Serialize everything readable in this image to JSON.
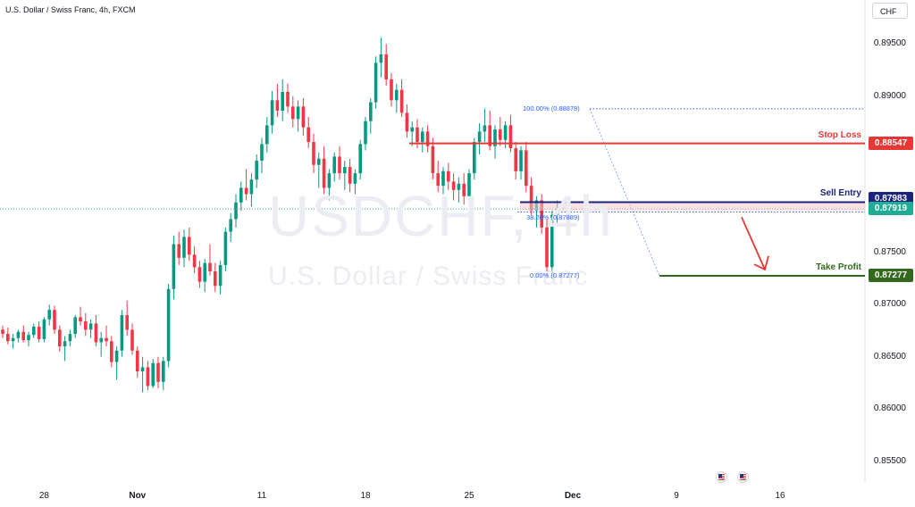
{
  "header": {
    "title": "U.S. Dollar / Swiss Franc, 4h, FXCM",
    "currency": "CHF"
  },
  "watermark": {
    "symbol": "USDCHF, 4h",
    "name": "U.S. Dollar / Swiss Franc"
  },
  "colors": {
    "up": "#089981",
    "down": "#f23645",
    "stop_loss": "#e53935",
    "sell_entry": "#1a237e",
    "take_profit": "#33691e",
    "fib": "#2962ff",
    "current_price": "#22ab94"
  },
  "chart_data": {
    "type": "candlestick",
    "xlabel": "",
    "ylabel": "",
    "ylim": [
      0.853,
      0.8975
    ],
    "yticks": [
      "0.85500",
      "0.86000",
      "0.86500",
      "0.87000",
      "0.87500",
      "0.88000",
      "0.88500",
      "0.89000",
      "0.89500"
    ],
    "ytick_values": [
      0.855,
      0.86,
      0.865,
      0.87,
      0.875,
      0.88,
      0.885,
      0.89,
      0.895
    ],
    "xticks": [
      {
        "label": "28",
        "bar": 8
      },
      {
        "label": "Nov",
        "bar": 26
      },
      {
        "label": "11",
        "bar": 50
      },
      {
        "label": "18",
        "bar": 70
      },
      {
        "label": "25",
        "bar": 90
      },
      {
        "label": "Dec",
        "bar": 110
      },
      {
        "label": "9",
        "bar": 130
      },
      {
        "label": "16",
        "bar": 150
      }
    ],
    "levels": {
      "stop_loss": {
        "label": "Stop Loss",
        "value": 0.88547,
        "text": "0.88547"
      },
      "sell_entry": {
        "label": "Sell Entry",
        "value": 0.87983,
        "text": "0.87983"
      },
      "take_profit": {
        "label": "Take Profit",
        "value": 0.87277,
        "text": "0.87277"
      },
      "current": {
        "value": 0.87919,
        "text": "0.87919"
      }
    },
    "fib": [
      {
        "label": "100.00% (0.88878)",
        "value": 0.88878
      },
      {
        "label": "38.20% (0.87889)",
        "value": 0.87889
      },
      {
        "label": "0.00% (0.87277)",
        "value": 0.87277
      }
    ],
    "candles": [
      [
        0.8676,
        0.868,
        0.8668,
        0.8672
      ],
      [
        0.8672,
        0.8678,
        0.8662,
        0.8665
      ],
      [
        0.8665,
        0.8672,
        0.8658,
        0.8668
      ],
      [
        0.8668,
        0.8676,
        0.8664,
        0.8674
      ],
      [
        0.8674,
        0.868,
        0.8664,
        0.8666
      ],
      [
        0.8666,
        0.8674,
        0.866,
        0.8671
      ],
      [
        0.8671,
        0.8682,
        0.8668,
        0.8679
      ],
      [
        0.8679,
        0.8684,
        0.8664,
        0.8667
      ],
      [
        0.8667,
        0.8688,
        0.8664,
        0.8686
      ],
      [
        0.8686,
        0.87,
        0.868,
        0.8695
      ],
      [
        0.8695,
        0.8699,
        0.8672,
        0.8676
      ],
      [
        0.8676,
        0.868,
        0.8655,
        0.866
      ],
      [
        0.866,
        0.867,
        0.8646,
        0.8665
      ],
      [
        0.8665,
        0.8676,
        0.866,
        0.8672
      ],
      [
        0.8672,
        0.869,
        0.8668,
        0.8688
      ],
      [
        0.8688,
        0.8698,
        0.868,
        0.8684
      ],
      [
        0.8684,
        0.8692,
        0.867,
        0.8676
      ],
      [
        0.8676,
        0.8686,
        0.8668,
        0.8682
      ],
      [
        0.8682,
        0.869,
        0.866,
        0.8664
      ],
      [
        0.8664,
        0.8674,
        0.865,
        0.8668
      ],
      [
        0.8668,
        0.868,
        0.866,
        0.8665
      ],
      [
        0.8665,
        0.867,
        0.864,
        0.8645
      ],
      [
        0.8645,
        0.866,
        0.8628,
        0.8656
      ],
      [
        0.8656,
        0.8695,
        0.865,
        0.869
      ],
      [
        0.869,
        0.8704,
        0.867,
        0.8676
      ],
      [
        0.8676,
        0.8682,
        0.8652,
        0.8656
      ],
      [
        0.8656,
        0.866,
        0.863,
        0.8636
      ],
      [
        0.8636,
        0.865,
        0.8616,
        0.864
      ],
      [
        0.864,
        0.8646,
        0.8618,
        0.8622
      ],
      [
        0.8622,
        0.8648,
        0.862,
        0.8644
      ],
      [
        0.8644,
        0.865,
        0.862,
        0.8626
      ],
      [
        0.8626,
        0.865,
        0.8618,
        0.8646
      ],
      [
        0.8646,
        0.872,
        0.864,
        0.8715
      ],
      [
        0.8715,
        0.8766,
        0.8705,
        0.8758
      ],
      [
        0.8758,
        0.877,
        0.8738,
        0.8745
      ],
      [
        0.8745,
        0.8772,
        0.8736,
        0.8765
      ],
      [
        0.8765,
        0.8774,
        0.8742,
        0.8748
      ],
      [
        0.8748,
        0.8756,
        0.873,
        0.8736
      ],
      [
        0.8736,
        0.8742,
        0.8716,
        0.8722
      ],
      [
        0.8722,
        0.8744,
        0.8712,
        0.874
      ],
      [
        0.874,
        0.8758,
        0.8728,
        0.8732
      ],
      [
        0.8732,
        0.874,
        0.8712,
        0.8718
      ],
      [
        0.8718,
        0.8742,
        0.871,
        0.8738
      ],
      [
        0.8738,
        0.8774,
        0.8732,
        0.877
      ],
      [
        0.877,
        0.8788,
        0.876,
        0.8782
      ],
      [
        0.8782,
        0.8806,
        0.8774,
        0.8798
      ],
      [
        0.8798,
        0.8818,
        0.879,
        0.8812
      ],
      [
        0.8812,
        0.883,
        0.88,
        0.8806
      ],
      [
        0.8806,
        0.8826,
        0.8794,
        0.882
      ],
      [
        0.882,
        0.8844,
        0.8812,
        0.8838
      ],
      [
        0.8838,
        0.886,
        0.8826,
        0.8854
      ],
      [
        0.8854,
        0.888,
        0.8846,
        0.8872
      ],
      [
        0.8872,
        0.8905,
        0.8864,
        0.8896
      ],
      [
        0.8896,
        0.8912,
        0.888,
        0.8886
      ],
      [
        0.8886,
        0.8916,
        0.8876,
        0.8904
      ],
      [
        0.8904,
        0.8912,
        0.8884,
        0.889
      ],
      [
        0.889,
        0.89,
        0.887,
        0.8878
      ],
      [
        0.8878,
        0.8896,
        0.8866,
        0.889
      ],
      [
        0.889,
        0.8898,
        0.8862,
        0.887
      ],
      [
        0.887,
        0.888,
        0.885,
        0.8856
      ],
      [
        0.8856,
        0.8864,
        0.8826,
        0.8834
      ],
      [
        0.8834,
        0.8846,
        0.8812,
        0.884
      ],
      [
        0.884,
        0.8852,
        0.8806,
        0.8812
      ],
      [
        0.8812,
        0.883,
        0.88,
        0.8826
      ],
      [
        0.8826,
        0.8846,
        0.8818,
        0.8842
      ],
      [
        0.8842,
        0.8852,
        0.882,
        0.8826
      ],
      [
        0.8826,
        0.8838,
        0.881,
        0.8832
      ],
      [
        0.8832,
        0.884,
        0.8808,
        0.8816
      ],
      [
        0.8816,
        0.883,
        0.8806,
        0.8826
      ],
      [
        0.8826,
        0.8858,
        0.882,
        0.8854
      ],
      [
        0.8854,
        0.888,
        0.8848,
        0.8876
      ],
      [
        0.8876,
        0.8898,
        0.8864,
        0.8894
      ],
      [
        0.8894,
        0.8938,
        0.8888,
        0.8932
      ],
      [
        0.8932,
        0.8956,
        0.8918,
        0.894
      ],
      [
        0.894,
        0.895,
        0.891,
        0.8916
      ],
      [
        0.8916,
        0.8922,
        0.889,
        0.8896
      ],
      [
        0.8896,
        0.8912,
        0.8884,
        0.8906
      ],
      [
        0.8906,
        0.8916,
        0.888,
        0.8884
      ],
      [
        0.8884,
        0.8892,
        0.886,
        0.8866
      ],
      [
        0.8866,
        0.8876,
        0.8852,
        0.887
      ],
      [
        0.887,
        0.8878,
        0.885,
        0.8856
      ],
      [
        0.8856,
        0.887,
        0.8846,
        0.8866
      ],
      [
        0.8866,
        0.8872,
        0.8846,
        0.8852
      ],
      [
        0.8852,
        0.886,
        0.882,
        0.8826
      ],
      [
        0.8826,
        0.8838,
        0.8808,
        0.8814
      ],
      [
        0.8814,
        0.8832,
        0.8806,
        0.8828
      ],
      [
        0.8828,
        0.8836,
        0.881,
        0.8818
      ],
      [
        0.8818,
        0.8826,
        0.88,
        0.881
      ],
      [
        0.881,
        0.8822,
        0.8798,
        0.8816
      ],
      [
        0.8816,
        0.8826,
        0.8796,
        0.8804
      ],
      [
        0.8804,
        0.883,
        0.8798,
        0.8826
      ],
      [
        0.8826,
        0.886,
        0.882,
        0.8856
      ],
      [
        0.8856,
        0.8874,
        0.8844,
        0.8866
      ],
      [
        0.8866,
        0.8888,
        0.8856,
        0.8872
      ],
      [
        0.8872,
        0.8886,
        0.8848,
        0.8852
      ],
      [
        0.8852,
        0.8872,
        0.884,
        0.8868
      ],
      [
        0.8868,
        0.888,
        0.8852,
        0.8858
      ],
      [
        0.8858,
        0.8876,
        0.885,
        0.8872
      ],
      [
        0.8872,
        0.8882,
        0.8846,
        0.885
      ],
      [
        0.885,
        0.8856,
        0.882,
        0.8828
      ],
      [
        0.8828,
        0.8852,
        0.882,
        0.8848
      ],
      [
        0.8848,
        0.8856,
        0.8808,
        0.8814
      ],
      [
        0.8814,
        0.8822,
        0.8786,
        0.879
      ],
      [
        0.879,
        0.8804,
        0.8774,
        0.88
      ],
      [
        0.88,
        0.8806,
        0.8768,
        0.8774
      ],
      [
        0.8774,
        0.8782,
        0.8728,
        0.8736
      ],
      [
        0.8736,
        0.879,
        0.873,
        0.8786
      ],
      [
        0.8786,
        0.88,
        0.8776,
        0.8792
      ]
    ]
  }
}
